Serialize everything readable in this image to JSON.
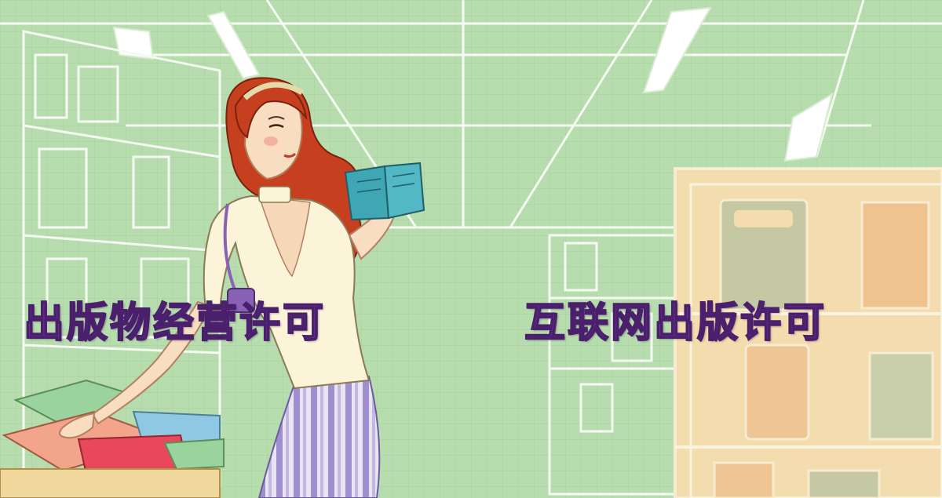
{
  "labels": {
    "left": "出版物经营许可",
    "right": "互联网出版许可"
  },
  "colors": {
    "background": "#b7dcae",
    "label_text": "#7b3fa0",
    "shelf_right": "#f3dcae"
  },
  "illustration": {
    "subject": "woman-reading-book-in-bookstore"
  }
}
